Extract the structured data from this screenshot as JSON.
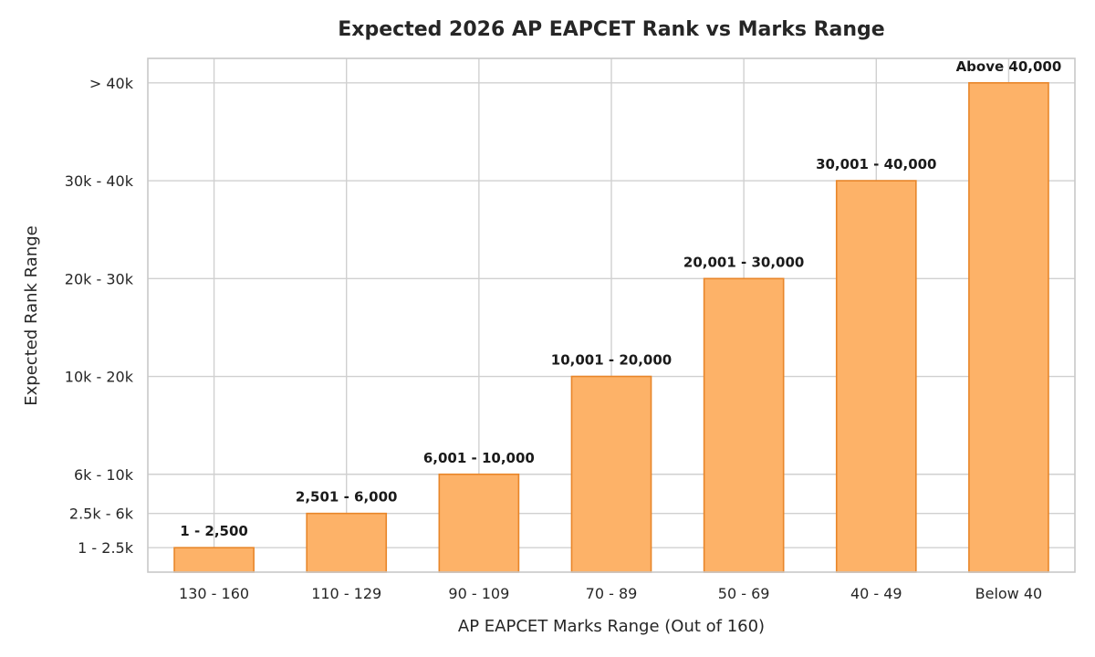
{
  "chart_data": {
    "type": "bar",
    "title": "Expected 2026 AP EAPCET Rank vs Marks Range",
    "xlabel": "AP EAPCET Marks Range (Out of 160)",
    "ylabel": "Expected Rank Range",
    "categories": [
      "130 - 160",
      "110 - 129",
      "90 - 109",
      "70 - 89",
      "50 - 69",
      "40 - 49",
      "Below 40"
    ],
    "values": [
      2500,
      6000,
      10000,
      20000,
      30000,
      40000,
      50000
    ],
    "data_labels": [
      "1 - 2,500",
      "2,501 - 6,000",
      "6,001 - 10,000",
      "10,001 - 20,000",
      "20,001 - 30,000",
      "30,001 - 40,000",
      "Above 40,000"
    ],
    "y_ticks": [
      {
        "value": 2500,
        "label": "1 - 2.5k"
      },
      {
        "value": 6000,
        "label": "2.5k - 6k"
      },
      {
        "value": 10000,
        "label": "6k - 10k"
      },
      {
        "value": 20000,
        "label": "10k - 20k"
      },
      {
        "value": 30000,
        "label": "20k - 30k"
      },
      {
        "value": 40000,
        "label": "30k - 40k"
      },
      {
        "value": 50000,
        "label": "> 40k"
      }
    ],
    "ylim": [
      0,
      52500
    ],
    "grid": true,
    "legend": "none",
    "colors": {
      "bar_fill": "#fdb268",
      "bar_stroke": "#e8862a"
    }
  }
}
